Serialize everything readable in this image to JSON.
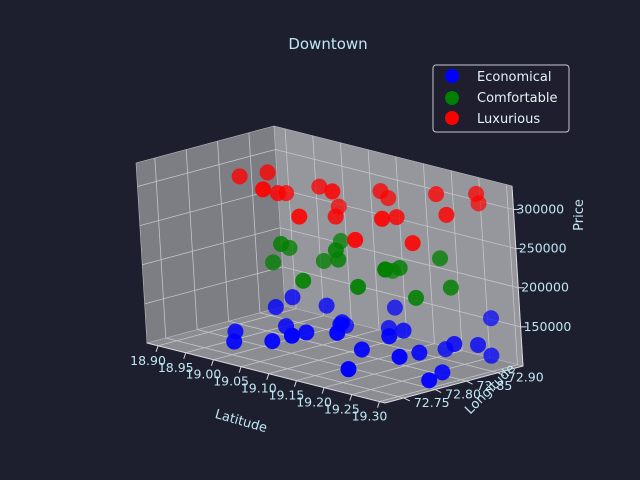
{
  "chart_data": {
    "type": "scatter3d",
    "title": "Downtown",
    "xlabel": "Latitude",
    "ylabel": "Longitude",
    "zlabel": "Price",
    "xlim": [
      18.88,
      19.31
    ],
    "ylim": [
      72.72,
      72.94
    ],
    "zlim": [
      100000,
      330000
    ],
    "x_ticks": [
      "18.90",
      "18.95",
      "19.00",
      "19.05",
      "19.10",
      "19.15",
      "19.20",
      "19.25",
      "19.30"
    ],
    "y_ticks": [
      "72.75",
      "72.80",
      "72.85",
      "72.90"
    ],
    "z_ticks": [
      "150000",
      "200000",
      "250000",
      "300000"
    ],
    "legend_position": "top-right",
    "colors": {
      "background": "#1e1f2e",
      "pane": "#8a8b8f",
      "text": "#bfe6f2",
      "economical": "#0000ff",
      "comfortable": "#008000",
      "luxurious": "#ff0000"
    },
    "series": [
      {
        "name": "Economical",
        "color": "#0000ff",
        "points": [
          [
            19.0,
            72.85,
            152000
          ],
          [
            19.05,
            72.86,
            148000
          ],
          [
            19.1,
            72.84,
            140000
          ],
          [
            19.15,
            72.87,
            135000
          ],
          [
            19.2,
            72.85,
            145000
          ],
          [
            19.25,
            72.83,
            130000
          ],
          [
            19.28,
            72.86,
            140000
          ],
          [
            19.02,
            72.82,
            125000
          ],
          [
            19.08,
            72.8,
            132000
          ],
          [
            19.12,
            72.82,
            145000
          ],
          [
            19.18,
            72.8,
            128000
          ],
          [
            19.22,
            72.81,
            150000
          ],
          [
            18.98,
            72.84,
            138000
          ],
          [
            19.06,
            72.88,
            120000
          ],
          [
            19.14,
            72.89,
            155000
          ],
          [
            19.24,
            72.88,
            122000
          ],
          [
            19.04,
            72.78,
            118000
          ],
          [
            19.16,
            72.78,
            150000
          ],
          [
            19.26,
            72.79,
            135000
          ],
          [
            19.1,
            72.76,
            140000
          ],
          [
            18.95,
            72.8,
            110000
          ],
          [
            18.97,
            72.78,
            105000
          ],
          [
            19.2,
            72.76,
            115000
          ],
          [
            19.29,
            72.83,
            112000
          ],
          [
            19.3,
            72.9,
            120000
          ],
          [
            19.3,
            72.88,
            138000
          ],
          [
            19.28,
            72.92,
            160000
          ],
          [
            19.3,
            72.8,
            110000
          ]
        ]
      },
      {
        "name": "Comfortable",
        "color": "#008000",
        "points": [
          [
            19.0,
            72.85,
            215000
          ],
          [
            19.05,
            72.86,
            205000
          ],
          [
            19.1,
            72.84,
            220000
          ],
          [
            19.15,
            72.87,
            210000
          ],
          [
            19.2,
            72.85,
            225000
          ],
          [
            19.25,
            72.83,
            200000
          ],
          [
            19.28,
            72.86,
            212000
          ],
          [
            19.02,
            72.82,
            230000
          ],
          [
            19.08,
            72.8,
            198000
          ],
          [
            19.12,
            72.82,
            240000
          ],
          [
            19.18,
            72.8,
            208000
          ],
          [
            19.22,
            72.81,
            235000
          ],
          [
            18.98,
            72.84,
            195000
          ],
          [
            19.06,
            72.88,
            228000
          ],
          [
            19.14,
            72.89,
            202000
          ],
          [
            19.24,
            72.88,
            238000
          ]
        ]
      },
      {
        "name": "Luxurious",
        "color": "#ff0000",
        "points": [
          [
            19.0,
            72.85,
            285000
          ],
          [
            19.05,
            72.86,
            300000
          ],
          [
            19.1,
            72.84,
            275000
          ],
          [
            19.15,
            72.87,
            310000
          ],
          [
            19.2,
            72.85,
            290000
          ],
          [
            19.25,
            72.83,
            270000
          ],
          [
            19.28,
            72.86,
            305000
          ],
          [
            19.02,
            72.82,
            295000
          ],
          [
            19.08,
            72.8,
            280000
          ],
          [
            19.12,
            72.82,
            315000
          ],
          [
            19.18,
            72.8,
            268000
          ],
          [
            19.22,
            72.81,
            300000
          ],
          [
            18.98,
            72.84,
            310000
          ],
          [
            19.06,
            72.88,
            272000
          ],
          [
            19.14,
            72.89,
            295000
          ],
          [
            19.24,
            72.88,
            320000
          ],
          [
            19.29,
            72.9,
            325000
          ],
          [
            18.94,
            72.83,
            300000
          ],
          [
            19.04,
            72.78,
            312000
          ],
          [
            19.27,
            72.92,
            305000
          ]
        ]
      }
    ]
  }
}
